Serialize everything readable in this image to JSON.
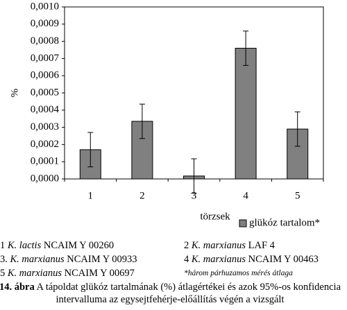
{
  "chart_data": {
    "type": "bar",
    "ylabel": "%",
    "xlabel": "törzsek",
    "categories": [
      "1",
      "2",
      "3",
      "4",
      "5"
    ],
    "series": [
      {
        "name": "glükóz tartalom*",
        "color": "#808080",
        "values": [
          0.00017,
          0.000335,
          1.7e-05,
          0.00076,
          0.00029
        ],
        "errors": [
          0.0001,
          0.0001,
          0.0001,
          0.0001,
          0.0001
        ]
      }
    ],
    "ylim": [
      0,
      0.001
    ],
    "yticks": [
      {
        "value": 0,
        "label": "0,0000"
      },
      {
        "value": 0.0001,
        "label": "0,0001"
      },
      {
        "value": 0.0002,
        "label": "0,0002"
      },
      {
        "value": 0.0003,
        "label": "0,0003"
      },
      {
        "value": 0.0004,
        "label": "0,0004"
      },
      {
        "value": 0.0005,
        "label": "0,0005"
      },
      {
        "value": 0.0006,
        "label": "0,0006"
      },
      {
        "value": 0.0007,
        "label": "0,0007"
      },
      {
        "value": 0.0008,
        "label": "0,0008"
      },
      {
        "value": 0.0009,
        "label": "0,0009"
      },
      {
        "value": 0.001,
        "label": "0,0010"
      }
    ],
    "grid": false,
    "legend": "bottom-right"
  },
  "strains": [
    {
      "number": "1",
      "species": "K. lactis",
      "strain": "NCAIM Y 00260"
    },
    {
      "number": "2",
      "species": "K. marxianus",
      "strain": "LAF 4"
    },
    {
      "number": "3.",
      "species": "K. marxianus",
      "strain": "NCAIM Y 00933"
    },
    {
      "number": "4",
      "species": "K. marxianus",
      "strain": "NCAIM Y 00463"
    },
    {
      "number": "5",
      "species": "K. marxianus",
      "strain": "NCAIM Y 00697"
    }
  ],
  "footnote": "*három párhuzamos mérés átlaga",
  "caption": {
    "label": "14. ábra",
    "text": "A tápoldat glükóz tartalmának (%) átlagértékei és azok 95%-os konfidencia intervalluma az egysejtfehérje-előállítás végén a vizsgált"
  }
}
